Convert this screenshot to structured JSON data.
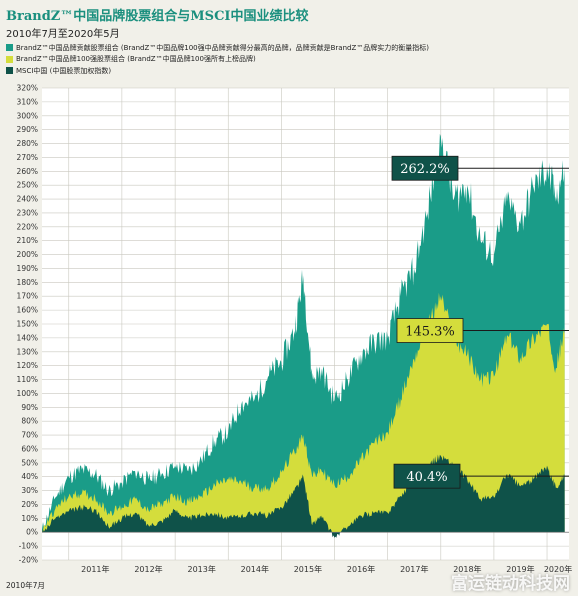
{
  "header": {
    "title": "BrandZ™中国品牌股票组合与MSCI中国业绩比较",
    "subtitle": "2010年7月至2020年5月"
  },
  "legend": [
    {
      "label": "BrandZ™中国品牌贡献股票组合 (BrandZ™中国品牌100强中品牌贡献得分最高的品牌，品牌贡献是BrandZ™品牌实力的衡量指标)",
      "color": "#1a9c88"
    },
    {
      "label": "BrandZ™中国品牌100强股票组合 (BrandZ™中国品牌100强所有上榜品牌)",
      "color": "#d4dd3c"
    },
    {
      "label": "MSCI中国 (中国股票加权指数)",
      "color": "#0f5249"
    }
  ],
  "colors": {
    "contribution": "#1a9c88",
    "top100": "#d4dd3c",
    "msci": "#0f5249",
    "callout_dark": "#0f5249",
    "callout_light": "#d4dd3c",
    "grid": "#c9c8bf"
  },
  "watermark": "富运链动科技网",
  "chart_data": {
    "type": "area",
    "title": "BrandZ™中国品牌股票组合与MSCI中国业绩比较",
    "subtitle": "2010年7月至2020年5月",
    "xlabel": "",
    "ylabel": "",
    "x_start_label": "2010年7月",
    "x_tick_labels": [
      "2011年",
      "2012年",
      "2013年",
      "2014年",
      "2015年",
      "2016年",
      "2017年",
      "2018年",
      "2019年",
      "2020年"
    ],
    "y_tick_labels": [
      "-20%",
      "-10%",
      "0%",
      "10%",
      "20%",
      "30%",
      "40%",
      "50%",
      "60%",
      "70%",
      "80%",
      "90%",
      "100%",
      "110%",
      "120%",
      "130%",
      "140%",
      "150%",
      "160%",
      "170%",
      "180%",
      "190%",
      "200%",
      "210%",
      "220%",
      "230%",
      "240%",
      "250%",
      "260%",
      "270%",
      "280%",
      "290%",
      "300%",
      "310%",
      "320%"
    ],
    "ylim": [
      -20,
      320
    ],
    "grid": true,
    "legend_position": "top-left",
    "x_dates": [
      "2010-07",
      "2010-10",
      "2011-01",
      "2011-04",
      "2011-07",
      "2011-10",
      "2012-01",
      "2012-04",
      "2012-07",
      "2012-10",
      "2013-01",
      "2013-04",
      "2013-07",
      "2013-10",
      "2014-01",
      "2014-04",
      "2014-07",
      "2014-10",
      "2015-01",
      "2015-04",
      "2015-06",
      "2015-08",
      "2015-10",
      "2016-01",
      "2016-04",
      "2016-07",
      "2016-10",
      "2017-01",
      "2017-04",
      "2017-07",
      "2017-10",
      "2018-01",
      "2018-04",
      "2018-07",
      "2018-10",
      "2019-01",
      "2019-04",
      "2019-07",
      "2019-10",
      "2020-01",
      "2020-03",
      "2020-05"
    ],
    "series": [
      {
        "name": "BrandZ™中国品牌贡献股票组合",
        "color": "#1a9c88",
        "values": [
          2,
          25,
          40,
          45,
          42,
          30,
          36,
          44,
          38,
          42,
          48,
          44,
          52,
          66,
          72,
          92,
          96,
          112,
          123,
          145,
          185,
          110,
          118,
          95,
          110,
          128,
          137,
          140,
          170,
          190,
          230,
          285,
          240,
          250,
          210,
          200,
          238,
          222,
          248,
          262,
          242,
          262.2
        ]
      },
      {
        "name": "BrandZ™中国品牌100强股票组合",
        "color": "#d4dd3c",
        "values": [
          1,
          17,
          26,
          28,
          25,
          14,
          18,
          24,
          16,
          21,
          26,
          22,
          26,
          34,
          38,
          36,
          32,
          32,
          43,
          58,
          70,
          40,
          45,
          34,
          40,
          52,
          64,
          72,
          96,
          125,
          148,
          170,
          140,
          128,
          110,
          112,
          142,
          126,
          140,
          150,
          118,
          145.3
        ]
      },
      {
        "name": "MSCI中国",
        "color": "#0f5249",
        "values": [
          0,
          10,
          15,
          18,
          16,
          4,
          10,
          14,
          5,
          8,
          16,
          10,
          12,
          14,
          10,
          12,
          14,
          12,
          18,
          30,
          40,
          5,
          12,
          -4,
          4,
          12,
          14,
          14,
          26,
          38,
          48,
          55,
          48,
          38,
          24,
          25,
          42,
          33,
          38,
          48,
          32,
          40.4
        ]
      }
    ],
    "callouts": [
      {
        "label": "262.2%",
        "value": 262.2,
        "series": "BrandZ™中国品牌贡献股票组合"
      },
      {
        "label": "145.3%",
        "value": 145.3,
        "series": "BrandZ™中国品牌100强股票组合"
      },
      {
        "label": "40.4%",
        "value": 40.4,
        "series": "MSCI中国"
      }
    ]
  }
}
